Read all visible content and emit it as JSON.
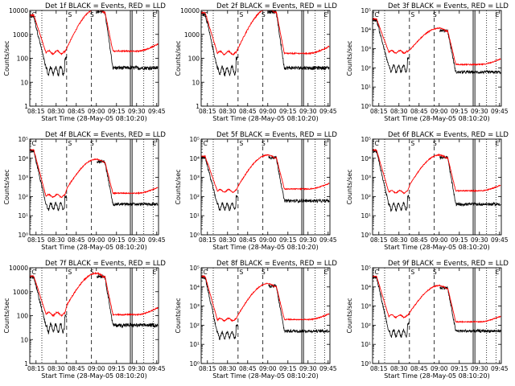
{
  "chart_data": [
    {
      "type": "line",
      "title": "Det 1f BLACK = Events, RED = LLD",
      "xlabel": "Start Time (28-May-05 08:10:20)",
      "ylabel": "Counts/sec",
      "y_scale": "log",
      "ylim": [
        1,
        10000
      ],
      "y_ticks": [
        1,
        10,
        100,
        1000,
        10000
      ],
      "y_tick_labels": [
        "1",
        "10",
        "100",
        "1000",
        "10000"
      ],
      "x_tick_labels": [
        "08:15",
        "08:30",
        "08:45",
        "09:00",
        "09:15",
        "09:30",
        "09:45"
      ],
      "series": [
        {
          "color": "#000000"
        },
        {
          "color": "#ff0000"
        }
      ],
      "markers": [
        "C",
        "S",
        "S",
        "E"
      ]
    },
    {
      "type": "line",
      "title": "Det 2f BLACK = Events, RED = LLD",
      "xlabel": "Start Time (28-May-05 08:10:20)",
      "ylabel": "Counts/sec",
      "y_scale": "log",
      "ylim": [
        1,
        10000
      ],
      "y_ticks": [
        1,
        10,
        100,
        1000,
        10000
      ],
      "y_tick_labels": [
        "1",
        "10",
        "100",
        "1000",
        "10000"
      ],
      "x_tick_labels": [
        "08:15",
        "08:30",
        "08:45",
        "09:00",
        "09:15",
        "09:30",
        "09:45"
      ],
      "series": [
        {
          "color": "#000000"
        },
        {
          "color": "#ff0000"
        }
      ],
      "markers": [
        "C",
        "S",
        "S",
        "E"
      ]
    },
    {
      "type": "line",
      "title": "Det 3f BLACK = Events, RED = LLD",
      "xlabel": "Start Time (28-May-05 08:10:20)",
      "ylabel": "Counts/sec",
      "y_scale": "log",
      "ylim": [
        1,
        100000
      ],
      "y_ticks": [
        1,
        10,
        100,
        1000,
        10000,
        100000
      ],
      "y_tick_labels": [
        "10⁰",
        "10¹",
        "10²",
        "10³",
        "10⁴",
        "10⁵"
      ],
      "x_tick_labels": [
        "08:15",
        "08:30",
        "08:45",
        "09:00",
        "09:15",
        "09:30",
        "09:45"
      ],
      "series": [
        {
          "color": "#000000"
        },
        {
          "color": "#ff0000"
        }
      ],
      "markers": [
        "C",
        "S",
        "S",
        "E"
      ]
    },
    {
      "type": "line",
      "title": "Det 4f BLACK = Events, RED = LLD",
      "xlabel": "Start Time (28-May-05 08:10:20)",
      "ylabel": "Counts/sec",
      "y_scale": "log",
      "ylim": [
        1,
        100000
      ],
      "y_ticks": [
        1,
        10,
        100,
        1000,
        10000,
        100000
      ],
      "y_tick_labels": [
        "10⁰",
        "10¹",
        "10²",
        "10³",
        "10⁴",
        "10⁵"
      ],
      "x_tick_labels": [
        "08:15",
        "08:30",
        "08:45",
        "09:00",
        "09:15",
        "09:30",
        "09:45"
      ],
      "series": [
        {
          "color": "#000000"
        },
        {
          "color": "#ff0000"
        }
      ],
      "markers": [
        "C",
        "S",
        "S",
        "E"
      ]
    },
    {
      "type": "line",
      "title": "Det 5f BLACK = Events, RED = LLD",
      "xlabel": "Start Time (28-May-05 08:10:20)",
      "ylabel": "Counts/sec",
      "y_scale": "log",
      "ylim": [
        1,
        100000
      ],
      "y_ticks": [
        1,
        10,
        100,
        1000,
        10000,
        100000
      ],
      "y_tick_labels": [
        "10⁰",
        "10¹",
        "10²",
        "10³",
        "10⁴",
        "10⁵"
      ],
      "x_tick_labels": [
        "08:15",
        "08:30",
        "08:45",
        "09:00",
        "09:15",
        "09:30",
        "09:45"
      ],
      "series": [
        {
          "color": "#000000"
        },
        {
          "color": "#ff0000"
        }
      ],
      "markers": [
        "C",
        "S",
        "S",
        "E"
      ]
    },
    {
      "type": "line",
      "title": "Det 6f BLACK = Events, RED = LLD",
      "xlabel": "Start Time (28-May-05 08:10:20)",
      "ylabel": "Counts/sec",
      "y_scale": "log",
      "ylim": [
        1,
        100000
      ],
      "y_ticks": [
        1,
        10,
        100,
        1000,
        10000,
        100000
      ],
      "y_tick_labels": [
        "10⁰",
        "10¹",
        "10²",
        "10³",
        "10⁴",
        "10⁵"
      ],
      "x_tick_labels": [
        "08:15",
        "08:30",
        "08:45",
        "09:00",
        "09:15",
        "09:30",
        "09:45"
      ],
      "series": [
        {
          "color": "#000000"
        },
        {
          "color": "#ff0000"
        }
      ],
      "markers": [
        "C",
        "S",
        "S",
        "E"
      ]
    },
    {
      "type": "line",
      "title": "Det 7f BLACK = Events, RED = LLD",
      "xlabel": "Start Time (28-May-05 08:10:20)",
      "ylabel": "Counts/sec",
      "y_scale": "log",
      "ylim": [
        1,
        10000
      ],
      "y_ticks": [
        1,
        10,
        100,
        1000,
        10000
      ],
      "y_tick_labels": [
        "1",
        "10",
        "100",
        "1000",
        "10000"
      ],
      "x_tick_labels": [
        "08:15",
        "08:30",
        "08:45",
        "09:00",
        "09:15",
        "09:30",
        "09:45"
      ],
      "series": [
        {
          "color": "#000000"
        },
        {
          "color": "#ff0000"
        }
      ],
      "markers": [
        "C",
        "S",
        "S",
        "E"
      ]
    },
    {
      "type": "line",
      "title": "Det 8f BLACK = Events, RED = LLD",
      "xlabel": "Start Time (28-May-05 08:10:20)",
      "ylabel": "Counts/sec",
      "y_scale": "log",
      "ylim": [
        1,
        100000
      ],
      "y_ticks": [
        1,
        10,
        100,
        1000,
        10000,
        100000
      ],
      "y_tick_labels": [
        "10⁰",
        "10¹",
        "10²",
        "10³",
        "10⁴",
        "10⁵"
      ],
      "x_tick_labels": [
        "08:15",
        "08:30",
        "08:45",
        "09:00",
        "09:15",
        "09:30",
        "09:45"
      ],
      "series": [
        {
          "color": "#000000"
        },
        {
          "color": "#ff0000"
        }
      ],
      "markers": [
        "C",
        "S",
        "S",
        "E"
      ]
    },
    {
      "type": "line",
      "title": "Det 9f BLACK = Events, RED = LLD",
      "xlabel": "Start Time (28-May-05 08:10:20)",
      "ylabel": "Counts/sec",
      "y_scale": "log",
      "ylim": [
        1,
        100000
      ],
      "y_ticks": [
        1,
        10,
        100,
        1000,
        10000,
        100000
      ],
      "y_tick_labels": [
        "10⁰",
        "10¹",
        "10²",
        "10³",
        "10⁴",
        "10⁵"
      ],
      "x_tick_labels": [
        "08:15",
        "08:30",
        "08:45",
        "09:00",
        "09:15",
        "09:30",
        "09:45"
      ],
      "series": [
        {
          "color": "#000000"
        },
        {
          "color": "#ff0000"
        }
      ],
      "markers": [
        "C",
        "S",
        "S",
        "E"
      ]
    }
  ]
}
